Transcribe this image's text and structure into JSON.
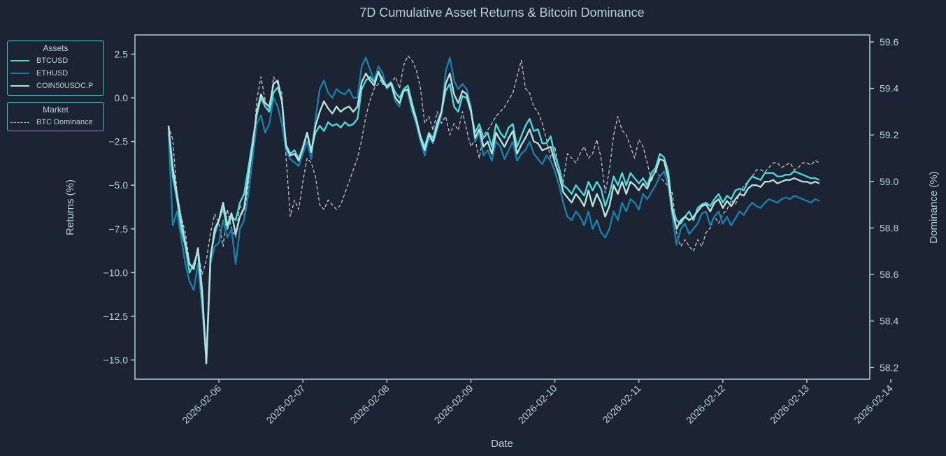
{
  "chart_data": {
    "type": "line",
    "title": "7D Cumulative Asset Returns & Bitcoin Dominance",
    "xlabel": "Date",
    "ylabel": "Returns (%)",
    "y2label": "Dominance (%)",
    "x_ticks": [
      "2026-02-06",
      "2026-02-07",
      "2026-02-08",
      "2026-02-09",
      "2026-02-10",
      "2026-02-11",
      "2026-02-12",
      "2026-02-13",
      "2026-02-14"
    ],
    "y_ticks": [
      "2.5",
      "0.0",
      "−2.5",
      "−5.0",
      "−7.5",
      "−10.0",
      "−12.5",
      "−15.0"
    ],
    "y_tick_values": [
      2.5,
      0.0,
      -2.5,
      -5.0,
      -7.5,
      -10.0,
      -12.5,
      -15.0
    ],
    "y2_ticks": [
      "59.6",
      "59.4",
      "59.2",
      "59.0",
      "58.8",
      "58.6",
      "58.4",
      "58.2"
    ],
    "y2_tick_values": [
      59.6,
      59.4,
      59.2,
      59.0,
      58.8,
      58.6,
      58.4,
      58.2
    ],
    "xlim_days": [
      -1.0,
      7.75
    ],
    "ylim": [
      -16.1,
      3.6
    ],
    "y2lim": [
      58.15,
      59.63
    ],
    "grid": false,
    "legend_placement": "left-outside",
    "x_days": [
      -0.6,
      -0.55,
      -0.5,
      -0.45,
      -0.4,
      -0.35,
      -0.3,
      -0.25,
      -0.2,
      -0.15,
      -0.1,
      -0.05,
      0.0,
      0.05,
      0.1,
      0.15,
      0.2,
      0.25,
      0.3,
      0.35,
      0.4,
      0.45,
      0.5,
      0.55,
      0.6,
      0.65,
      0.7,
      0.75,
      0.8,
      0.85,
      0.9,
      0.95,
      1.0,
      1.05,
      1.1,
      1.15,
      1.2,
      1.25,
      1.3,
      1.35,
      1.4,
      1.45,
      1.5,
      1.55,
      1.6,
      1.65,
      1.7,
      1.75,
      1.8,
      1.85,
      1.9,
      1.95,
      2.0,
      2.05,
      2.1,
      2.15,
      2.2,
      2.25,
      2.3,
      2.35,
      2.4,
      2.45,
      2.5,
      2.55,
      2.6,
      2.65,
      2.7,
      2.75,
      2.8,
      2.85,
      2.9,
      2.95,
      3.0,
      3.05,
      3.1,
      3.15,
      3.2,
      3.25,
      3.3,
      3.35,
      3.4,
      3.45,
      3.5,
      3.55,
      3.6,
      3.65,
      3.7,
      3.75,
      3.8,
      3.85,
      3.9,
      3.95,
      4.0,
      4.05,
      4.1,
      4.15,
      4.2,
      4.25,
      4.3,
      4.35,
      4.4,
      4.45,
      4.5,
      4.55,
      4.6,
      4.65,
      4.7,
      4.75,
      4.8,
      4.85,
      4.9,
      4.95,
      5.0,
      5.05,
      5.1,
      5.15,
      5.2,
      5.25,
      5.3,
      5.35,
      5.4,
      5.45,
      5.5,
      5.55,
      5.6,
      5.65,
      5.7,
      5.75,
      5.8,
      5.85,
      5.9,
      5.95,
      6.0,
      6.05,
      6.1,
      6.15,
      6.2,
      6.25,
      6.3,
      6.35,
      6.4,
      6.45,
      6.5,
      6.55,
      6.6,
      6.65,
      6.7,
      6.75,
      6.8,
      6.85,
      6.9,
      6.95,
      7.0,
      7.05,
      7.1,
      7.15,
      7.2,
      7.25,
      7.3,
      7.35
    ],
    "series": [
      {
        "name": "BTCUSD",
        "axis": "left",
        "color": "#4fd6d6",
        "style": "solid",
        "values": [
          -1.6,
          -4.5,
          -5.8,
          -7.5,
          -8.5,
          -10.0,
          -9.5,
          -8.8,
          -11.5,
          -15.0,
          -9.0,
          -7.8,
          -7.0,
          -6.3,
          -7.5,
          -6.8,
          -7.0,
          -6.0,
          -5.5,
          -4.0,
          -2.5,
          -1.0,
          0.0,
          -0.5,
          -0.8,
          0.3,
          0.6,
          -0.2,
          -2.7,
          -3.2,
          -3.0,
          -3.5,
          -2.8,
          -2.0,
          -3.0,
          -2.0,
          -1.6,
          -1.9,
          -1.4,
          -1.6,
          -1.5,
          -1.7,
          -1.4,
          -1.6,
          -1.5,
          -1.2,
          0.5,
          1.0,
          1.2,
          0.9,
          1.5,
          0.8,
          0.7,
          0.9,
          0.3,
          0.0,
          0.5,
          0.7,
          -0.3,
          -1.2,
          -2.2,
          -2.8,
          -2.0,
          -2.3,
          -1.4,
          -0.8,
          0.4,
          0.8,
          -0.5,
          -0.8,
          0.1,
          0.0,
          -0.8,
          -2.0,
          -1.5,
          -2.3,
          -2.0,
          -2.8,
          -1.5,
          -2.0,
          -2.3,
          -1.7,
          -1.5,
          -2.8,
          -2.2,
          -1.6,
          -1.2,
          -1.9,
          -1.8,
          -2.6,
          -2.6,
          -2.2,
          -3.3,
          -4.0,
          -5.0,
          -5.2,
          -5.5,
          -5.0,
          -5.3,
          -5.6,
          -4.8,
          -5.3,
          -4.8,
          -5.2,
          -6.2,
          -5.5,
          -4.5,
          -5.0,
          -4.3,
          -5.0,
          -4.3,
          -4.6,
          -4.9,
          -4.6,
          -5.0,
          -4.3,
          -4.0,
          -3.2,
          -3.4,
          -4.2,
          -6.3,
          -7.0,
          -7.2,
          -6.8,
          -6.5,
          -7.0,
          -6.3,
          -6.1,
          -6.0,
          -6.2,
          -5.8,
          -5.5,
          -6.0,
          -5.6,
          -5.8,
          -5.3,
          -5.2,
          -5.3,
          -4.8,
          -4.5,
          -4.6,
          -4.7,
          -4.3,
          -4.3,
          -4.3,
          -4.5,
          -4.5,
          -4.4,
          -4.4,
          -4.2,
          -4.3,
          -4.4,
          -4.5,
          -4.6,
          -4.6,
          -4.7
        ]
      },
      {
        "name": "ETHUSD",
        "axis": "left",
        "color": "#1a7fa8",
        "style": "solid",
        "values": [
          -2.0,
          -7.3,
          -6.5,
          -8.0,
          -9.5,
          -10.5,
          -11.0,
          -9.5,
          -12.0,
          -15.0,
          -9.5,
          -8.5,
          -8.3,
          -7.0,
          -8.0,
          -7.5,
          -9.5,
          -7.5,
          -7.0,
          -5.5,
          -3.5,
          -1.5,
          -1.0,
          -2.0,
          -1.5,
          0.0,
          -0.5,
          -1.5,
          -3.0,
          -3.5,
          -3.7,
          -3.9,
          -3.2,
          -2.5,
          -3.5,
          -1.2,
          0.5,
          1.0,
          0.3,
          0.0,
          0.5,
          0.3,
          0.2,
          0.5,
          0.0,
          0.0,
          1.8,
          2.3,
          1.6,
          1.0,
          1.8,
          1.4,
          0.5,
          0.8,
          -0.2,
          -0.5,
          0.5,
          0.3,
          -0.8,
          -1.5,
          -2.5,
          -3.3,
          -2.3,
          -2.6,
          -1.8,
          -1.0,
          1.5,
          2.3,
          1.0,
          0.5,
          0.8,
          0.5,
          -0.5,
          -2.5,
          -2.0,
          -3.3,
          -3.0,
          -3.6,
          -2.5,
          -2.8,
          -3.5,
          -3.0,
          -2.5,
          -3.6,
          -3.2,
          -3.0,
          -2.5,
          -3.2,
          -3.5,
          -3.8,
          -3.3,
          -3.6,
          -4.2,
          -5.0,
          -6.0,
          -6.8,
          -7.0,
          -6.5,
          -6.8,
          -7.3,
          -6.5,
          -7.5,
          -7.0,
          -7.7,
          -8.0,
          -7.5,
          -6.5,
          -7.0,
          -6.0,
          -6.5,
          -5.8,
          -6.0,
          -6.4,
          -5.5,
          -5.8,
          -5.4,
          -5.0,
          -4.5,
          -4.2,
          -5.0,
          -6.8,
          -8.4,
          -7.5,
          -7.2,
          -7.8,
          -7.5,
          -7.2,
          -6.6,
          -6.5,
          -7.3,
          -6.8,
          -6.5,
          -7.2,
          -6.8,
          -7.3,
          -6.9,
          -6.5,
          -6.7,
          -6.3,
          -6.0,
          -6.2,
          -6.3,
          -6.0,
          -5.8,
          -5.9,
          -6.0,
          -5.8,
          -5.7,
          -5.8,
          -5.6,
          -5.7,
          -5.8,
          -5.9,
          -6.0,
          -5.8,
          -5.9
        ]
      },
      {
        "name": "COIN50USDC.P",
        "axis": "left",
        "color": "#b8e0db",
        "style": "solid",
        "values": [
          -1.6,
          -4.0,
          -5.5,
          -7.0,
          -8.3,
          -9.5,
          -9.8,
          -8.6,
          -11.0,
          -15.2,
          -9.2,
          -7.5,
          -7.0,
          -6.0,
          -7.3,
          -6.6,
          -7.8,
          -6.8,
          -6.3,
          -4.5,
          -2.8,
          -0.8,
          0.2,
          -0.3,
          -0.5,
          0.8,
          1.0,
          -0.2,
          -2.8,
          -3.3,
          -3.2,
          -3.6,
          -2.9,
          -2.0,
          -3.1,
          -1.6,
          -0.8,
          -0.2,
          -0.6,
          -0.9,
          -0.5,
          -0.8,
          -0.6,
          -0.5,
          -0.8,
          -0.5,
          0.9,
          1.4,
          1.0,
          0.7,
          1.5,
          1.0,
          0.6,
          0.8,
          0.0,
          -0.3,
          0.4,
          0.5,
          -0.5,
          -1.3,
          -2.3,
          -3.0,
          -2.1,
          -2.5,
          -1.6,
          -0.8,
          0.8,
          1.4,
          0.2,
          -0.3,
          0.4,
          0.2,
          -0.7,
          -2.3,
          -1.8,
          -2.8,
          -2.5,
          -3.2,
          -2.0,
          -2.4,
          -2.8,
          -2.3,
          -1.9,
          -3.2,
          -2.7,
          -2.3,
          -1.8,
          -2.5,
          -2.6,
          -3.0,
          -2.9,
          -2.8,
          -3.7,
          -4.4,
          -5.4,
          -5.7,
          -6.0,
          -5.5,
          -5.8,
          -6.2,
          -5.3,
          -6.2,
          -5.5,
          -6.0,
          -6.8,
          -6.2,
          -5.0,
          -5.5,
          -4.8,
          -5.5,
          -4.8,
          -5.0,
          -5.3,
          -4.9,
          -5.2,
          -4.6,
          -4.2,
          -3.5,
          -3.6,
          -4.6,
          -6.5,
          -7.5,
          -7.0,
          -6.8,
          -7.0,
          -6.8,
          -6.5,
          -6.2,
          -6.1,
          -6.5,
          -6.0,
          -5.8,
          -6.3,
          -5.9,
          -6.2,
          -5.8,
          -5.5,
          -5.6,
          -5.2,
          -5.0,
          -5.0,
          -5.1,
          -4.8,
          -4.8,
          -4.7,
          -4.9,
          -4.8,
          -4.7,
          -4.7,
          -4.6,
          -4.7,
          -4.8,
          -4.8,
          -4.9,
          -4.8,
          -4.9
        ]
      },
      {
        "name": "BTC Dominance",
        "axis": "right",
        "color": "#c2c2c8",
        "style": "dashed",
        "values": [
          59.24,
          59.18,
          58.95,
          58.85,
          58.78,
          58.65,
          58.62,
          58.7,
          58.6,
          58.66,
          58.78,
          58.86,
          58.82,
          58.72,
          58.88,
          58.8,
          58.76,
          58.9,
          58.85,
          58.98,
          59.1,
          59.35,
          59.45,
          59.35,
          59.3,
          59.45,
          59.42,
          59.38,
          59.1,
          58.85,
          58.92,
          58.88,
          59.0,
          59.1,
          59.08,
          59.02,
          58.9,
          58.88,
          58.92,
          58.9,
          58.88,
          58.9,
          58.95,
          59.0,
          59.05,
          59.1,
          59.18,
          59.28,
          59.35,
          59.4,
          59.42,
          59.45,
          59.4,
          59.42,
          59.45,
          59.4,
          59.5,
          59.54,
          59.52,
          59.48,
          59.4,
          59.25,
          59.28,
          59.22,
          59.3,
          59.25,
          59.28,
          59.2,
          59.25,
          59.22,
          59.3,
          59.22,
          59.15,
          59.18,
          59.1,
          59.2,
          59.22,
          59.25,
          59.28,
          59.3,
          59.32,
          59.35,
          59.38,
          59.45,
          59.52,
          59.4,
          59.38,
          59.32,
          59.3,
          59.25,
          59.18,
          59.1,
          59.15,
          59.05,
          59.0,
          59.12,
          59.1,
          59.08,
          59.12,
          59.15,
          59.1,
          59.12,
          59.18,
          59.1,
          58.95,
          59.05,
          59.2,
          59.28,
          59.22,
          59.2,
          59.15,
          59.1,
          59.18,
          59.15,
          59.08,
          59.0,
          59.05,
          59.02,
          59.0,
          58.98,
          58.95,
          58.78,
          58.72,
          58.75,
          58.72,
          58.7,
          58.75,
          58.72,
          58.78,
          58.8,
          58.85,
          58.82,
          58.86,
          58.88,
          58.92,
          58.9,
          58.95,
          58.98,
          59.0,
          59.02,
          59.05,
          59.05,
          59.04,
          59.06,
          59.08,
          59.08,
          59.06,
          59.07,
          59.08,
          59.05,
          59.06,
          59.08,
          59.08,
          59.07,
          59.09,
          59.08
        ]
      }
    ]
  },
  "legend": {
    "assets_title": "Assets",
    "assets": [
      {
        "label": "BTCUSD",
        "color": "#4fd6d6",
        "style": "solid"
      },
      {
        "label": "ETHUSD",
        "color": "#1a7fa8",
        "style": "solid"
      },
      {
        "label": "COIN50USDC.P",
        "color": "#b8e0db",
        "style": "solid"
      }
    ],
    "market_title": "Market",
    "market": [
      {
        "label": "BTC Dominance",
        "color": "#c2c2c8",
        "style": "dashed"
      }
    ]
  },
  "colors": {
    "background": "#1c2433",
    "axis": "#a8d0cc",
    "text": "#b5d3d3",
    "legend_border": "#3fbfc4"
  }
}
